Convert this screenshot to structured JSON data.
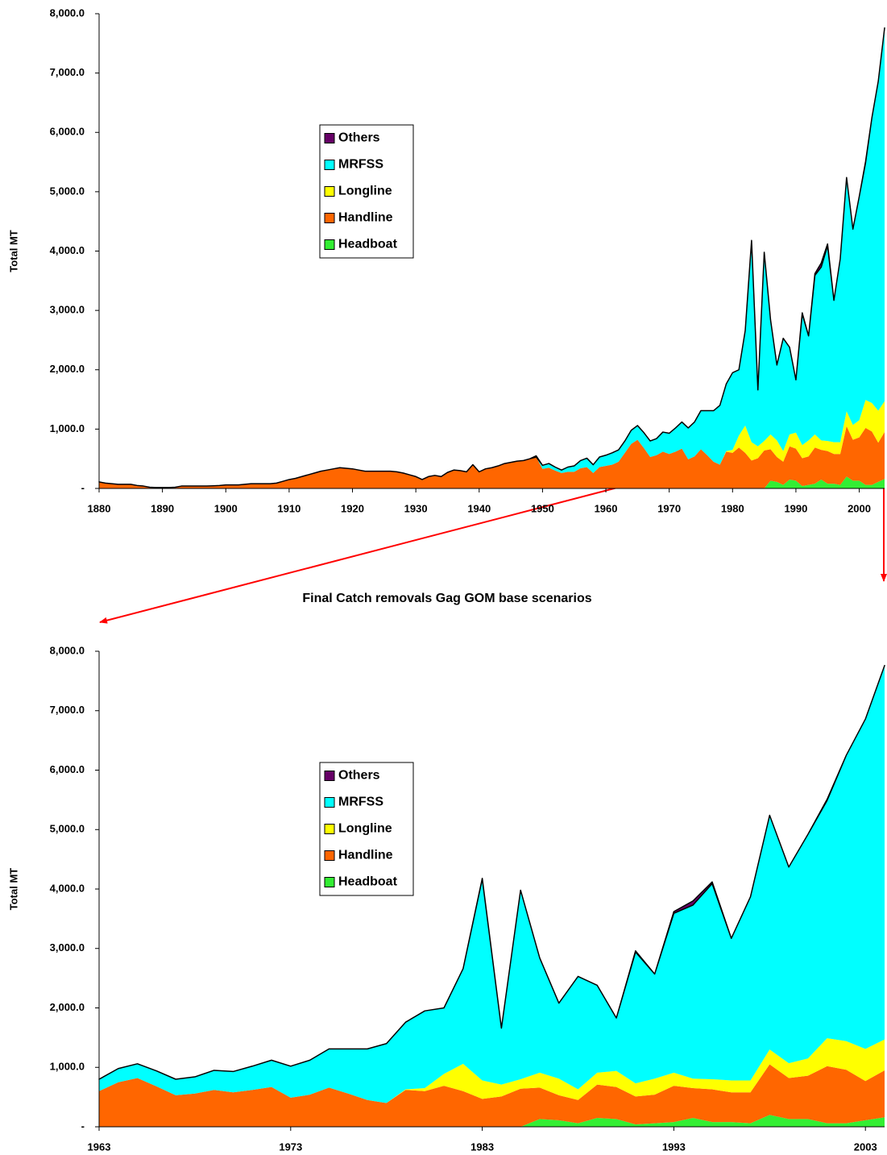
{
  "chart_data": [
    {
      "type": "area",
      "x": [
        1880,
        1881,
        1882,
        1883,
        1884,
        1885,
        1886,
        1887,
        1888,
        1889,
        1890,
        1891,
        1892,
        1893,
        1894,
        1895,
        1896,
        1897,
        1898,
        1899,
        1900,
        1901,
        1902,
        1903,
        1904,
        1905,
        1906,
        1907,
        1908,
        1909,
        1910,
        1911,
        1912,
        1913,
        1914,
        1915,
        1916,
        1917,
        1918,
        1919,
        1920,
        1921,
        1922,
        1923,
        1924,
        1925,
        1926,
        1927,
        1928,
        1929,
        1930,
        1931,
        1932,
        1933,
        1934,
        1935,
        1936,
        1937,
        1938,
        1939,
        1940,
        1941,
        1942,
        1943,
        1944,
        1945,
        1946,
        1947,
        1948,
        1949,
        1950,
        1951,
        1952,
        1953,
        1954,
        1955,
        1956,
        1957,
        1958,
        1959,
        1960,
        1961,
        1962,
        1963,
        1964,
        1965,
        1966,
        1967,
        1968,
        1969,
        1970,
        1971,
        1972,
        1973,
        1974,
        1975,
        1976,
        1977,
        1978,
        1979,
        1980,
        1981,
        1982,
        1983,
        1984,
        1985,
        1986,
        1987,
        1988,
        1989,
        1990,
        1991,
        1992,
        1993,
        1994,
        1995,
        1996,
        1997,
        1998,
        1999,
        2000,
        2001,
        2002,
        2003,
        2004
      ],
      "series": [
        {
          "name": "Headboat",
          "color": "#33ee33",
          "values": [
            0,
            0,
            0,
            0,
            0,
            0,
            0,
            0,
            0,
            0,
            0,
            0,
            0,
            0,
            0,
            0,
            0,
            0,
            0,
            0,
            0,
            0,
            0,
            0,
            0,
            0,
            0,
            0,
            0,
            0,
            0,
            0,
            0,
            0,
            0,
            0,
            0,
            0,
            0,
            0,
            0,
            0,
            0,
            0,
            0,
            0,
            0,
            0,
            0,
            0,
            0,
            0,
            0,
            0,
            0,
            0,
            0,
            0,
            0,
            0,
            0,
            0,
            0,
            0,
            0,
            0,
            0,
            0,
            0,
            0,
            0,
            0,
            0,
            0,
            0,
            0,
            0,
            0,
            0,
            0,
            0,
            0,
            0,
            0,
            0,
            0,
            0,
            0,
            0,
            0,
            0,
            0,
            0,
            0,
            0,
            0,
            0,
            0,
            0,
            0,
            0,
            0,
            0,
            0,
            0,
            0,
            130,
            110,
            60,
            150,
            130,
            40,
            60,
            80,
            150,
            80,
            80,
            60,
            200,
            130,
            130,
            60,
            60,
            110,
            160
          ]
        },
        {
          "name": "Handline",
          "color": "#ff6600",
          "values": [
            110,
            90,
            80,
            70,
            70,
            70,
            50,
            40,
            20,
            15,
            15,
            15,
            20,
            40,
            40,
            40,
            40,
            40,
            45,
            50,
            60,
            60,
            60,
            70,
            80,
            80,
            80,
            80,
            90,
            120,
            150,
            170,
            200,
            230,
            260,
            290,
            310,
            330,
            350,
            340,
            330,
            310,
            290,
            290,
            290,
            290,
            290,
            280,
            260,
            230,
            200,
            150,
            200,
            220,
            200,
            270,
            310,
            300,
            280,
            400,
            280,
            330,
            350,
            380,
            420,
            440,
            460,
            470,
            500,
            530,
            330,
            350,
            300,
            260,
            280,
            280,
            340,
            360,
            260,
            360,
            380,
            400,
            450,
            600,
            750,
            820,
            680,
            530,
            560,
            620,
            580,
            620,
            670,
            490,
            540,
            660,
            560,
            450,
            400,
            620,
            600,
            690,
            600,
            470,
            510,
            640,
            530,
            420,
            390,
            560,
            540,
            470,
            480,
            610,
            500,
            550,
            500,
            520,
            850,
            690,
            730,
            960,
            900,
            660,
            790
          ]
        },
        {
          "name": "Longline",
          "color": "#ffff00",
          "values": [
            0,
            0,
            0,
            0,
            0,
            0,
            0,
            0,
            0,
            0,
            0,
            0,
            0,
            0,
            0,
            0,
            0,
            0,
            0,
            0,
            0,
            0,
            0,
            0,
            0,
            0,
            0,
            0,
            0,
            0,
            0,
            0,
            0,
            0,
            0,
            0,
            0,
            0,
            0,
            0,
            0,
            0,
            0,
            0,
            0,
            0,
            0,
            0,
            0,
            0,
            0,
            0,
            0,
            0,
            0,
            0,
            0,
            0,
            0,
            0,
            0,
            0,
            0,
            0,
            0,
            0,
            0,
            0,
            0,
            0,
            0,
            0,
            0,
            0,
            0,
            0,
            0,
            0,
            0,
            0,
            0,
            0,
            0,
            0,
            0,
            0,
            0,
            0,
            0,
            0,
            0,
            0,
            0,
            0,
            0,
            0,
            0,
            0,
            0,
            10,
            50,
            200,
            460,
            310,
            200,
            160,
            250,
            280,
            180,
            200,
            270,
            220,
            270,
            220,
            160,
            170,
            200,
            200,
            250,
            250,
            290,
            470,
            480,
            540,
            520
          ]
        },
        {
          "name": "MRFSS",
          "color": "#00ffff",
          "values": [
            0,
            0,
            0,
            0,
            0,
            0,
            0,
            0,
            0,
            0,
            0,
            0,
            0,
            0,
            0,
            0,
            0,
            0,
            0,
            0,
            0,
            0,
            0,
            0,
            0,
            0,
            0,
            0,
            0,
            0,
            0,
            0,
            0,
            0,
            0,
            0,
            0,
            0,
            0,
            0,
            0,
            0,
            0,
            0,
            0,
            0,
            0,
            0,
            0,
            0,
            0,
            0,
            0,
            0,
            0,
            0,
            0,
            0,
            0,
            0,
            0,
            0,
            0,
            0,
            0,
            0,
            0,
            0,
            0,
            0,
            60,
            70,
            60,
            50,
            80,
            100,
            130,
            150,
            140,
            170,
            180,
            200,
            200,
            200,
            230,
            240,
            260,
            270,
            280,
            330,
            350,
            400,
            450,
            530,
            580,
            650,
            750,
            860,
            1000,
            1130,
            1300,
            1110,
            1600,
            3390,
            950,
            3180,
            1930,
            1270,
            1900,
            1470,
            890,
            2210,
            1760,
            2680,
            2920,
            3290,
            2390,
            3090,
            3940,
            3300,
            3770,
            4000,
            4810,
            5550,
            6290
          ]
        },
        {
          "name": "Others",
          "color": "#660066",
          "values": [
            0,
            0,
            0,
            0,
            0,
            0,
            0,
            0,
            0,
            0,
            0,
            0,
            0,
            0,
            0,
            0,
            0,
            0,
            0,
            0,
            0,
            0,
            0,
            0,
            0,
            0,
            0,
            0,
            0,
            0,
            0,
            0,
            0,
            0,
            0,
            0,
            0,
            0,
            0,
            0,
            0,
            0,
            0,
            0,
            0,
            0,
            0,
            0,
            0,
            0,
            0,
            0,
            0,
            0,
            0,
            0,
            0,
            0,
            0,
            0,
            0,
            0,
            0,
            0,
            0,
            0,
            0,
            0,
            0,
            20,
            0,
            0,
            0,
            0,
            0,
            0,
            0,
            0,
            0,
            0,
            0,
            0,
            0,
            0,
            0,
            0,
            0,
            0,
            0,
            0,
            0,
            0,
            0,
            0,
            0,
            0,
            0,
            0,
            0,
            0,
            0,
            0,
            0,
            10,
            0,
            0,
            0,
            0,
            0,
            0,
            0,
            20,
            0,
            30,
            70,
            30,
            0,
            0,
            0,
            0,
            0,
            20,
            0,
            0,
            0
          ]
        }
      ],
      "xlim": [
        1880,
        2004
      ],
      "xticks": [
        1880,
        1890,
        1900,
        1910,
        1920,
        1930,
        1940,
        1950,
        1960,
        1970,
        1980,
        1990,
        2000
      ],
      "ylim": [
        0,
        8000
      ],
      "yticks": [
        {
          "value": 0,
          "label": "-"
        },
        {
          "value": 1000,
          "label": "1,000.0"
        },
        {
          "value": 2000,
          "label": "2,000.0"
        },
        {
          "value": 3000,
          "label": "3,000.0"
        },
        {
          "value": 4000,
          "label": "4,000.0"
        },
        {
          "value": 5000,
          "label": "5,000.0"
        },
        {
          "value": 6000,
          "label": "6,000.0"
        },
        {
          "value": 7000,
          "label": "7,000.0"
        },
        {
          "value": 8000,
          "label": "8,000.0"
        }
      ],
      "y_label": "Total MT",
      "legend": "center-left"
    },
    {
      "type": "area",
      "title": "Final Catch removals Gag GOM base scenarios",
      "x": [
        1963,
        1964,
        1965,
        1966,
        1967,
        1968,
        1969,
        1970,
        1971,
        1972,
        1973,
        1974,
        1975,
        1976,
        1977,
        1978,
        1979,
        1980,
        1981,
        1982,
        1983,
        1984,
        1985,
        1986,
        1987,
        1988,
        1989,
        1990,
        1991,
        1992,
        1993,
        1994,
        1995,
        1996,
        1997,
        1998,
        1999,
        2000,
        2001,
        2002,
        2003,
        2004
      ],
      "series": [
        {
          "name": "Headboat",
          "color": "#33ee33",
          "values": [
            0,
            0,
            0,
            0,
            0,
            0,
            0,
            0,
            0,
            0,
            0,
            0,
            0,
            0,
            0,
            0,
            0,
            0,
            0,
            0,
            0,
            0,
            0,
            130,
            110,
            60,
            150,
            130,
            40,
            60,
            80,
            150,
            80,
            80,
            60,
            200,
            130,
            130,
            60,
            60,
            110,
            160
          ]
        },
        {
          "name": "Handline",
          "color": "#ff6600",
          "values": [
            600,
            750,
            820,
            680,
            530,
            560,
            620,
            580,
            620,
            670,
            490,
            540,
            660,
            560,
            450,
            400,
            620,
            600,
            690,
            600,
            470,
            510,
            640,
            530,
            420,
            390,
            560,
            540,
            470,
            480,
            610,
            500,
            550,
            500,
            520,
            850,
            690,
            730,
            960,
            900,
            660,
            790
          ]
        },
        {
          "name": "Longline",
          "color": "#ffff00",
          "values": [
            0,
            0,
            0,
            0,
            0,
            0,
            0,
            0,
            0,
            0,
            0,
            0,
            0,
            0,
            0,
            0,
            10,
            50,
            200,
            460,
            310,
            200,
            160,
            250,
            280,
            180,
            200,
            270,
            220,
            270,
            220,
            160,
            170,
            200,
            200,
            250,
            250,
            290,
            470,
            480,
            540,
            520
          ]
        },
        {
          "name": "MRFSS",
          "color": "#00ffff",
          "values": [
            200,
            230,
            240,
            260,
            270,
            280,
            330,
            350,
            400,
            450,
            530,
            580,
            650,
            750,
            860,
            1000,
            1130,
            1300,
            1110,
            1600,
            3390,
            950,
            3180,
            1930,
            1270,
            1900,
            1470,
            890,
            2210,
            1760,
            2680,
            2920,
            3290,
            2390,
            3090,
            3940,
            3300,
            3770,
            4000,
            4810,
            5550,
            6290
          ]
        },
        {
          "name": "Others",
          "color": "#660066",
          "values": [
            0,
            0,
            0,
            0,
            0,
            0,
            0,
            0,
            0,
            0,
            0,
            0,
            0,
            0,
            0,
            0,
            0,
            0,
            0,
            0,
            10,
            0,
            0,
            0,
            0,
            0,
            0,
            0,
            20,
            0,
            30,
            70,
            30,
            0,
            0,
            0,
            0,
            0,
            20,
            0,
            0,
            0
          ]
        }
      ],
      "xlim": [
        1963,
        2004
      ],
      "xticks": [
        1963,
        1973,
        1983,
        1993,
        2003
      ],
      "ylim": [
        0,
        8000
      ],
      "yticks": [
        {
          "value": 0,
          "label": "-"
        },
        {
          "value": 1000,
          "label": "1,000.0"
        },
        {
          "value": 2000,
          "label": "2,000.0"
        },
        {
          "value": 3000,
          "label": "3,000.0"
        },
        {
          "value": 4000,
          "label": "4,000.0"
        },
        {
          "value": 5000,
          "label": "5,000.0"
        },
        {
          "value": 6000,
          "label": "6,000.0"
        },
        {
          "value": 7000,
          "label": "7,000.0"
        },
        {
          "value": 8000,
          "label": "8,000.0"
        }
      ],
      "y_label": "Total MT",
      "legend": "center-left"
    }
  ]
}
